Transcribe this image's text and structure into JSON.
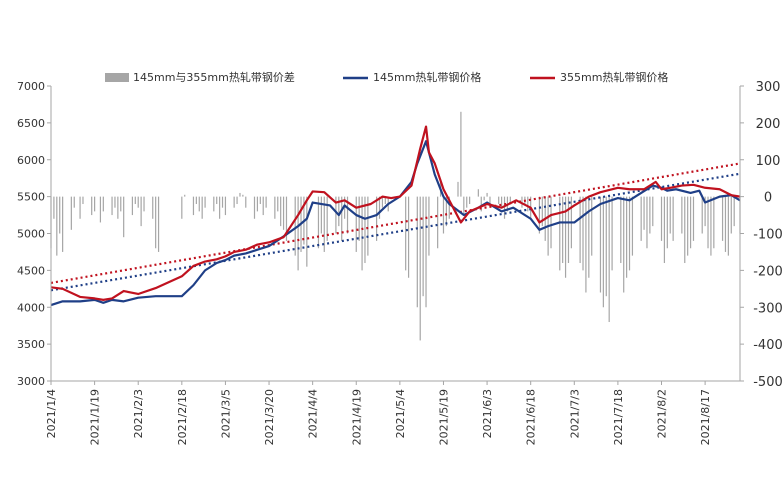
{
  "chart_data": {
    "type": "line",
    "title": "",
    "xlabel": "",
    "ylabel": "",
    "y2label": "",
    "ylim": [
      3000,
      7000
    ],
    "y2lim": [
      -500,
      300
    ],
    "y_ticks": [
      3000,
      3500,
      4000,
      4500,
      5000,
      5500,
      6000,
      6500,
      7000
    ],
    "y2_ticks": [
      -500,
      -400,
      -300,
      -200,
      -100,
      0,
      100,
      200,
      300
    ],
    "x_ticks": [
      "2021/1/4",
      "2021/1/19",
      "2021/2/3",
      "2021/2/18",
      "2021/3/5",
      "2021/3/20",
      "2021/4/4",
      "2021/4/19",
      "2021/5/4",
      "2021/5/19",
      "2021/6/3",
      "2021/6/18",
      "2021/7/3",
      "2021/7/18",
      "2021/8/2",
      "2021/8/17"
    ],
    "x_start": "2021/1/4",
    "x_end": "2021/8/29",
    "legend_position": "top",
    "colors": {
      "s145": "#1f3f87",
      "s355": "#c0121f",
      "diff": "#a6a6a6",
      "axis": "#a6a6a6"
    },
    "legend": {
      "diff": "145mm与355mm热轧带钢价差",
      "s145": "145mm热轧带钢价格",
      "s355": "355mm热轧带钢价格"
    },
    "series": [
      {
        "name": "145mm热轧带钢价格",
        "axis": "left",
        "style": "solid",
        "points": [
          [
            "2021/1/4",
            4030
          ],
          [
            "2021/1/8",
            4080
          ],
          [
            "2021/1/14",
            4080
          ],
          [
            "2021/1/19",
            4100
          ],
          [
            "2021/1/22",
            4060
          ],
          [
            "2021/1/25",
            4100
          ],
          [
            "2021/1/29",
            4080
          ],
          [
            "2021/2/3",
            4130
          ],
          [
            "2021/2/9",
            4150
          ],
          [
            "2021/2/18",
            4150
          ],
          [
            "2021/2/22",
            4300
          ],
          [
            "2021/2/26",
            4500
          ],
          [
            "2021/3/2",
            4600
          ],
          [
            "2021/3/5",
            4640
          ],
          [
            "2021/3/8",
            4700
          ],
          [
            "2021/3/12",
            4730
          ],
          [
            "2021/3/16",
            4780
          ],
          [
            "2021/3/20",
            4830
          ],
          [
            "2021/3/25",
            4960
          ],
          [
            "2021/3/30",
            5100
          ],
          [
            "2021/4/2",
            5200
          ],
          [
            "2021/4/4",
            5420
          ],
          [
            "2021/4/10",
            5380
          ],
          [
            "2021/4/13",
            5250
          ],
          [
            "2021/4/15",
            5380
          ],
          [
            "2021/4/19",
            5250
          ],
          [
            "2021/4/22",
            5200
          ],
          [
            "2021/4/26",
            5250
          ],
          [
            "2021/4/30",
            5400
          ],
          [
            "2021/5/4",
            5500
          ],
          [
            "2021/5/8",
            5700
          ],
          [
            "2021/5/10",
            5950
          ],
          [
            "2021/5/12",
            6150
          ],
          [
            "2021/5/13",
            6250
          ],
          [
            "2021/5/14",
            6100
          ],
          [
            "2021/5/16",
            5800
          ],
          [
            "2021/5/19",
            5500
          ],
          [
            "2021/5/21",
            5400
          ],
          [
            "2021/5/26",
            5250
          ],
          [
            "2021/5/31",
            5350
          ],
          [
            "2021/6/3",
            5420
          ],
          [
            "2021/6/8",
            5300
          ],
          [
            "2021/6/12",
            5350
          ],
          [
            "2021/6/18",
            5200
          ],
          [
            "2021/6/21",
            5050
          ],
          [
            "2021/6/24",
            5100
          ],
          [
            "2021/6/28",
            5150
          ],
          [
            "2021/7/3",
            5150
          ],
          [
            "2021/7/8",
            5300
          ],
          [
            "2021/7/12",
            5400
          ],
          [
            "2021/7/18",
            5480
          ],
          [
            "2021/7/22",
            5450
          ],
          [
            "2021/7/26",
            5550
          ],
          [
            "2021/7/30",
            5650
          ],
          [
            "2021/8/2",
            5620
          ],
          [
            "2021/8/4",
            5580
          ],
          [
            "2021/8/7",
            5600
          ],
          [
            "2021/8/12",
            5550
          ],
          [
            "2021/8/15",
            5580
          ],
          [
            "2021/8/17",
            5420
          ],
          [
            "2021/8/22",
            5500
          ],
          [
            "2021/8/26",
            5520
          ],
          [
            "2021/8/29",
            5450
          ]
        ]
      },
      {
        "name": "355mm热轧带钢价格",
        "axis": "left",
        "style": "solid",
        "points": [
          [
            "2021/1/4",
            4270
          ],
          [
            "2021/1/8",
            4250
          ],
          [
            "2021/1/14",
            4140
          ],
          [
            "2021/1/19",
            4120
          ],
          [
            "2021/1/22",
            4100
          ],
          [
            "2021/1/25",
            4120
          ],
          [
            "2021/1/29",
            4220
          ],
          [
            "2021/2/3",
            4180
          ],
          [
            "2021/2/9",
            4260
          ],
          [
            "2021/2/18",
            4420
          ],
          [
            "2021/2/22",
            4560
          ],
          [
            "2021/2/26",
            4620
          ],
          [
            "2021/3/2",
            4650
          ],
          [
            "2021/3/5",
            4690
          ],
          [
            "2021/3/8",
            4750
          ],
          [
            "2021/3/12",
            4780
          ],
          [
            "2021/3/16",
            4850
          ],
          [
            "2021/3/20",
            4880
          ],
          [
            "2021/3/25",
            4950
          ],
          [
            "2021/3/30",
            5250
          ],
          [
            "2021/4/2",
            5450
          ],
          [
            "2021/4/4",
            5570
          ],
          [
            "2021/4/8",
            5560
          ],
          [
            "2021/4/12",
            5420
          ],
          [
            "2021/4/15",
            5450
          ],
          [
            "2021/4/19",
            5350
          ],
          [
            "2021/4/24",
            5400
          ],
          [
            "2021/4/28",
            5500
          ],
          [
            "2021/5/1",
            5480
          ],
          [
            "2021/5/4",
            5500
          ],
          [
            "2021/5/8",
            5650
          ],
          [
            "2021/5/11",
            6150
          ],
          [
            "2021/5/12",
            6300
          ],
          [
            "2021/5/13",
            6450
          ],
          [
            "2021/5/14",
            6100
          ],
          [
            "2021/5/16",
            5950
          ],
          [
            "2021/5/19",
            5600
          ],
          [
            "2021/5/23",
            5300
          ],
          [
            "2021/5/25",
            5150
          ],
          [
            "2021/5/28",
            5300
          ],
          [
            "2021/6/3",
            5400
          ],
          [
            "2021/6/8",
            5350
          ],
          [
            "2021/6/13",
            5450
          ],
          [
            "2021/6/18",
            5350
          ],
          [
            "2021/6/21",
            5150
          ],
          [
            "2021/6/25",
            5250
          ],
          [
            "2021/6/30",
            5300
          ],
          [
            "2021/7/3",
            5380
          ],
          [
            "2021/7/8",
            5500
          ],
          [
            "2021/7/12",
            5560
          ],
          [
            "2021/7/18",
            5620
          ],
          [
            "2021/7/22",
            5600
          ],
          [
            "2021/7/27",
            5600
          ],
          [
            "2021/7/31",
            5700
          ],
          [
            "2021/8/2",
            5600
          ],
          [
            "2021/8/5",
            5620
          ],
          [
            "2021/8/9",
            5650
          ],
          [
            "2021/8/13",
            5660
          ],
          [
            "2021/8/17",
            5620
          ],
          [
            "2021/8/22",
            5600
          ],
          [
            "2021/8/26",
            5520
          ],
          [
            "2021/8/29",
            5500
          ]
        ]
      },
      {
        "name": "145mm热轧带钢价格 trend",
        "axis": "left",
        "style": "dotted",
        "points": [
          [
            "2021/1/4",
            4230
          ],
          [
            "2021/8/29",
            5810
          ]
        ]
      },
      {
        "name": "355mm热轧带钢价格 trend",
        "axis": "left",
        "style": "dotted",
        "points": [
          [
            "2021/1/4",
            4330
          ],
          [
            "2021/8/29",
            5950
          ]
        ]
      }
    ],
    "bars": {
      "name": "145mm与355mm热轧带钢价差",
      "axis": "right",
      "points": [
        [
          "2021/1/4",
          -140
        ],
        [
          "2021/1/5",
          -60
        ],
        [
          "2021/1/6",
          -160
        ],
        [
          "2021/1/7",
          -100
        ],
        [
          "2021/1/8",
          -150
        ],
        [
          "2021/1/11",
          -90
        ],
        [
          "2021/1/12",
          -30
        ],
        [
          "2021/1/14",
          -60
        ],
        [
          "2021/1/15",
          -20
        ],
        [
          "2021/1/18",
          -50
        ],
        [
          "2021/1/19",
          -40
        ],
        [
          "2021/1/21",
          -70
        ],
        [
          "2021/1/22",
          -40
        ],
        [
          "2021/1/25",
          -50
        ],
        [
          "2021/1/26",
          -30
        ],
        [
          "2021/1/27",
          -60
        ],
        [
          "2021/1/28",
          -40
        ],
        [
          "2021/1/29",
          -110
        ],
        [
          "2021/2/1",
          -50
        ],
        [
          "2021/2/2",
          -20
        ],
        [
          "2021/2/3",
          -30
        ],
        [
          "2021/2/4",
          -80
        ],
        [
          "2021/2/5",
          -40
        ],
        [
          "2021/2/8",
          -60
        ],
        [
          "2021/2/9",
          -140
        ],
        [
          "2021/2/10",
          -150
        ],
        [
          "2021/2/18",
          -60
        ],
        [
          "2021/2/19",
          5
        ],
        [
          "2021/2/22",
          -50
        ],
        [
          "2021/2/23",
          -20
        ],
        [
          "2021/2/24",
          -40
        ],
        [
          "2021/2/25",
          -60
        ],
        [
          "2021/2/26",
          -30
        ],
        [
          "2021/3/1",
          -40
        ],
        [
          "2021/3/2",
          -20
        ],
        [
          "2021/3/3",
          -60
        ],
        [
          "2021/3/4",
          -30
        ],
        [
          "2021/3/5",
          -50
        ],
        [
          "2021/3/8",
          -30
        ],
        [
          "2021/3/9",
          -20
        ],
        [
          "2021/3/10",
          10
        ],
        [
          "2021/3/11",
          5
        ],
        [
          "2021/3/12",
          -30
        ],
        [
          "2021/3/15",
          -60
        ],
        [
          "2021/3/16",
          -40
        ],
        [
          "2021/3/17",
          -20
        ],
        [
          "2021/3/18",
          -50
        ],
        [
          "2021/3/19",
          -30
        ],
        [
          "2021/3/22",
          -60
        ],
        [
          "2021/3/23",
          -40
        ],
        [
          "2021/3/24",
          -80
        ],
        [
          "2021/3/25",
          -90
        ],
        [
          "2021/3/26",
          -120
        ],
        [
          "2021/3/29",
          -160
        ],
        [
          "2021/3/30",
          -200
        ],
        [
          "2021/3/31",
          -150
        ],
        [
          "2021/4/1",
          -130
        ],
        [
          "2021/4/2",
          -190
        ],
        [
          "2021/4/6",
          -140
        ],
        [
          "2021/4/7",
          -100
        ],
        [
          "2021/4/8",
          -150
        ],
        [
          "2021/4/9",
          -120
        ],
        [
          "2021/4/12",
          -100
        ],
        [
          "2021/4/13",
          -80
        ],
        [
          "2021/4/14",
          -120
        ],
        [
          "2021/4/15",
          -60
        ],
        [
          "2021/4/16",
          -100
        ],
        [
          "2021/4/19",
          -150
        ],
        [
          "2021/4/20",
          -120
        ],
        [
          "2021/4/21",
          -200
        ],
        [
          "2021/4/22",
          -180
        ],
        [
          "2021/4/23",
          -160
        ],
        [
          "2021/4/26",
          -120
        ],
        [
          "2021/4/27",
          -60
        ],
        [
          "2021/4/28",
          -30
        ],
        [
          "2021/4/29",
          -20
        ],
        [
          "2021/4/30",
          -40
        ],
        [
          "2021/5/6",
          -200
        ],
        [
          "2021/5/7",
          -220
        ],
        [
          "2021/5/10",
          -300
        ],
        [
          "2021/5/11",
          -390
        ],
        [
          "2021/5/12",
          -270
        ],
        [
          "2021/5/13",
          -300
        ],
        [
          "2021/5/14",
          -160
        ],
        [
          "2021/5/17",
          -140
        ],
        [
          "2021/5/18",
          40
        ],
        [
          "2021/5/19",
          -100
        ],
        [
          "2021/5/20",
          -80
        ],
        [
          "2021/5/21",
          -60
        ],
        [
          "2021/5/24",
          40
        ],
        [
          "2021/5/25",
          230
        ],
        [
          "2021/5/26",
          -50
        ],
        [
          "2021/5/27",
          -30
        ],
        [
          "2021/5/28",
          -20
        ],
        [
          "2021/5/31",
          20
        ],
        [
          "2021/6/1",
          -40
        ],
        [
          "2021/6/2",
          -10
        ],
        [
          "2021/6/3",
          10
        ],
        [
          "2021/6/4",
          -30
        ],
        [
          "2021/6/7",
          -20
        ],
        [
          "2021/6/8",
          -30
        ],
        [
          "2021/6/9",
          -60
        ],
        [
          "2021/6/10",
          -40
        ],
        [
          "2021/6/11",
          -20
        ],
        [
          "2021/6/15",
          -30
        ],
        [
          "2021/6/16",
          -20
        ],
        [
          "2021/6/17",
          -40
        ],
        [
          "2021/6/18",
          -60
        ],
        [
          "2021/6/21",
          -100
        ],
        [
          "2021/6/22",
          -80
        ],
        [
          "2021/6/23",
          -120
        ],
        [
          "2021/6/24",
          -160
        ],
        [
          "2021/6/25",
          -140
        ],
        [
          "2021/6/28",
          -200
        ],
        [
          "2021/6/29",
          -180
        ],
        [
          "2021/6/30",
          -220
        ],
        [
          "2021/7/1",
          -180
        ],
        [
          "2021/7/2",
          -140
        ],
        [
          "2021/7/5",
          -180
        ],
        [
          "2021/7/6",
          -200
        ],
        [
          "2021/7/7",
          -260
        ],
        [
          "2021/7/8",
          -220
        ],
        [
          "2021/7/9",
          -160
        ],
        [
          "2021/7/12",
          -260
        ],
        [
          "2021/7/13",
          -300
        ],
        [
          "2021/7/14",
          -270
        ],
        [
          "2021/7/15",
          -340
        ],
        [
          "2021/7/16",
          -200
        ],
        [
          "2021/7/19",
          -180
        ],
        [
          "2021/7/20",
          -260
        ],
        [
          "2021/7/21",
          -220
        ],
        [
          "2021/7/22",
          -200
        ],
        [
          "2021/7/23",
          -160
        ],
        [
          "2021/7/26",
          -120
        ],
        [
          "2021/7/27",
          -90
        ],
        [
          "2021/7/28",
          -140
        ],
        [
          "2021/7/29",
          -100
        ],
        [
          "2021/7/30",
          -80
        ],
        [
          "2021/8/2",
          -120
        ],
        [
          "2021/8/3",
          -180
        ],
        [
          "2021/8/4",
          -140
        ],
        [
          "2021/8/5",
          -100
        ],
        [
          "2021/8/6",
          -120
        ],
        [
          "2021/8/9",
          -100
        ],
        [
          "2021/8/10",
          -180
        ],
        [
          "2021/8/11",
          -160
        ],
        [
          "2021/8/12",
          -140
        ],
        [
          "2021/8/13",
          -120
        ],
        [
          "2021/8/16",
          -100
        ],
        [
          "2021/8/17",
          -80
        ],
        [
          "2021/8/18",
          -140
        ],
        [
          "2021/8/19",
          -160
        ],
        [
          "2021/8/20",
          -140
        ],
        [
          "2021/8/23",
          -120
        ],
        [
          "2021/8/24",
          -150
        ],
        [
          "2021/8/25",
          -160
        ],
        [
          "2021/8/26",
          -100
        ],
        [
          "2021/8/27",
          -80
        ],
        [
          "2021/8/29",
          -100
        ]
      ]
    }
  }
}
